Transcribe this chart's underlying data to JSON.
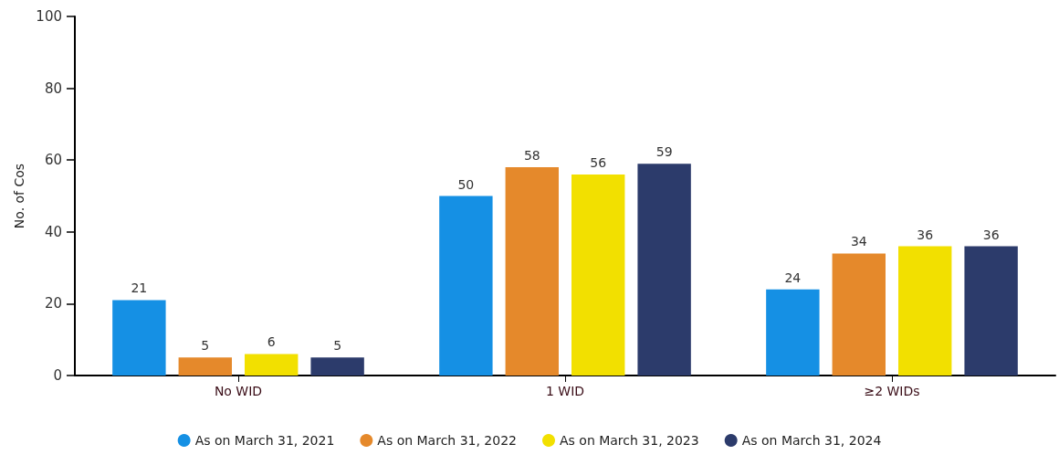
{
  "chart_data": {
    "type": "bar",
    "ylabel": "No. of Cos",
    "categories": [
      "No WID",
      "1 WID",
      "≥2 WIDs"
    ],
    "series": [
      {
        "name": "As on March 31, 2021",
        "color": "#1590e4",
        "values": [
          21,
          50,
          24
        ]
      },
      {
        "name": "As on March 31, 2022",
        "color": "#e5892b",
        "values": [
          5,
          58,
          34
        ]
      },
      {
        "name": "As on March 31, 2023",
        "color": "#f2e000",
        "values": [
          6,
          56,
          36
        ]
      },
      {
        "name": "As on March 31, 2024",
        "color": "#2c3b6b",
        "values": [
          5,
          59,
          36
        ]
      }
    ],
    "ylim": [
      0,
      100
    ],
    "yticks": [
      0,
      20,
      40,
      60,
      80,
      100
    ],
    "grid": false,
    "legend": "bottom",
    "data_labels": true
  }
}
